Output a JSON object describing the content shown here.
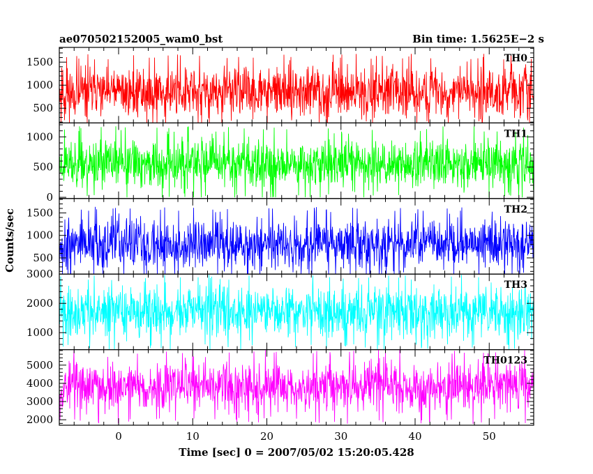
{
  "header": {
    "left_title": "ae070502152005_wam0_bst",
    "right_title": "Bin time: 1.5625E−2 s"
  },
  "axes": {
    "ylabel": "Counts/sec",
    "xlabel": "Time [sec] 0 = 2007/05/02 15:20:05.428"
  },
  "chart_data": {
    "type": "line",
    "title": "ae070502152005_wam0_bst",
    "subtitle": "Bin time: 1.5625E−2 s",
    "xlabel": "Time [sec] 0 = 2007/05/02 15:20:05.428",
    "ylabel": "Counts/sec",
    "bin_time_s": 0.015625,
    "xlim": [
      -8,
      56
    ],
    "x_ticks": [
      0,
      10,
      20,
      30,
      40,
      50
    ],
    "x_tick_labels": [
      "0",
      "10",
      "20",
      "30",
      "40",
      "50"
    ],
    "data_x_range": [
      -8,
      56
    ],
    "grid": false,
    "legend": "per-panel label at top-right",
    "series": [
      {
        "name": "TH0",
        "color": "#ff0000",
        "ylim": [
          180,
          1820
        ],
        "y_ticks": [
          500,
          1000,
          1500
        ],
        "y_tick_labels": [
          "500",
          "1000",
          "1500"
        ],
        "mean": 850,
        "min": 150,
        "max": 1820,
        "seed": 11
      },
      {
        "name": "TH1",
        "color": "#00ff00",
        "ylim": [
          -20,
          1230
        ],
        "y_ticks": [
          0,
          500,
          1000
        ],
        "y_tick_labels": [
          "0",
          "500",
          "1000"
        ],
        "mean": 560,
        "min": 0,
        "max": 1230,
        "seed": 23
      },
      {
        "name": "TH2",
        "color": "#0000ff",
        "ylim": [
          140,
          1820
        ],
        "y_ticks": [
          500,
          1000,
          1500
        ],
        "y_tick_labels": [
          "500",
          "1000",
          "1500"
        ],
        "mean": 800,
        "min": 140,
        "max": 1820,
        "seed": 37
      },
      {
        "name": "TH3",
        "color": "#00ffff",
        "ylim": [
          420,
          3000
        ],
        "y_ticks": [
          1000,
          2000,
          3000
        ],
        "y_tick_labels": [
          "1000",
          "2000",
          "3000"
        ],
        "mean": 1700,
        "min": 420,
        "max": 3000,
        "seed": 41
      },
      {
        "name": "TH0123",
        "color": "#ff00ff",
        "ylim": [
          1700,
          5850
        ],
        "y_ticks": [
          2000,
          3000,
          4000,
          5000
        ],
        "y_tick_labels": [
          "2000",
          "3000",
          "4000",
          "5000"
        ],
        "mean": 3850,
        "min": 1700,
        "max": 5850,
        "seed": 53
      }
    ]
  }
}
